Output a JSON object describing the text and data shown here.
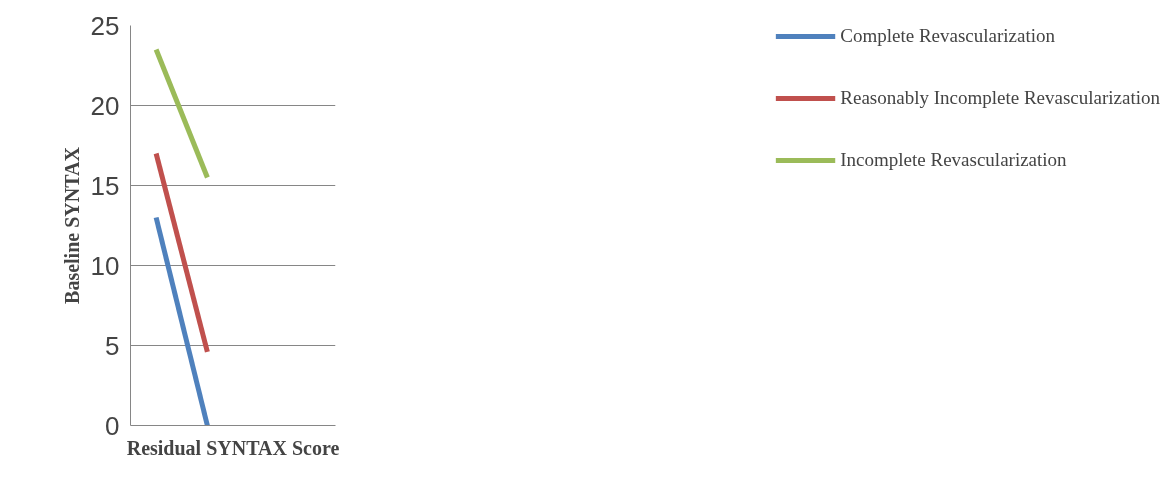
{
  "chart_data": {
    "type": "line",
    "xlabel": "Residual SYNTAX Score",
    "ylabel": "Baseline SYNTAX",
    "categories": [
      null,
      null,
      null,
      null
    ],
    "series": [
      {
        "name": "Complete Revascularization",
        "color": "#4f81bd",
        "values": [
          13,
          0,
          null,
          null
        ]
      },
      {
        "name": "Reasonably Incomplete Revascularization",
        "color": "#c0504d",
        "values": [
          17,
          4.6,
          null,
          null
        ]
      },
      {
        "name": "Incomplete Revascularization",
        "color": "#9bbb59",
        "values": [
          23.5,
          15.5,
          null,
          null
        ]
      }
    ],
    "ylim": [
      0,
      25
    ],
    "yticks": [
      0,
      5,
      10,
      15,
      20,
      25
    ],
    "grid": "y",
    "legend": "right",
    "marker": "none",
    "line_style": "solid",
    "tick_labels": "y"
  }
}
